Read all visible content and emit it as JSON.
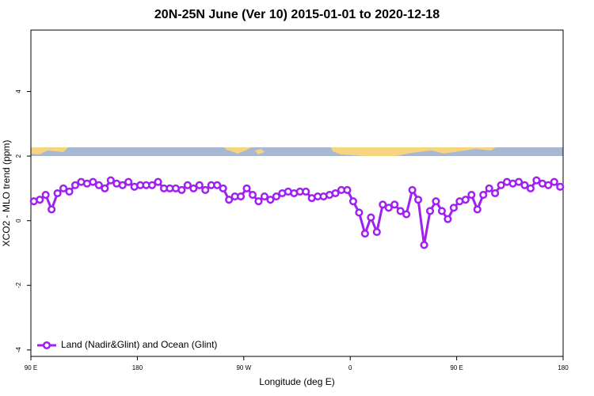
{
  "chart_data": {
    "type": "line",
    "title": "20N-25N June (Ver 10)   2015-01-01 to 2020-12-18",
    "x_label": "Longitude (deg E)",
    "y_label": "XCO2 - MLO trend (ppm)",
    "x": [
      92.5,
      97.5,
      102.5,
      107.5,
      112.5,
      117.5,
      122.5,
      127.5,
      132.5,
      137.5,
      142.5,
      147.5,
      152.5,
      157.5,
      162.5,
      167.5,
      172.5,
      177.5,
      182.5,
      187.5,
      192.5,
      197.5,
      202.5,
      207.5,
      212.5,
      217.5,
      222.5,
      227.5,
      232.5,
      237.5,
      242.5,
      247.5,
      252.5,
      257.5,
      262.5,
      267.5,
      272.5,
      277.5,
      282.5,
      287.5,
      292.5,
      297.5,
      302.5,
      307.5,
      312.5,
      317.5,
      322.5,
      327.5,
      332.5,
      337.5,
      342.5,
      347.5,
      352.5,
      357.5,
      362.5,
      367.5,
      372.5,
      377.5,
      382.5,
      387.5,
      392.5,
      397.5,
      402.5,
      407.5,
      412.5,
      417.5,
      422.5,
      427.5,
      432.5,
      437.5,
      442.5,
      447.5,
      452.5,
      457.5,
      462.5,
      467.5,
      472.5,
      477.5,
      482.5,
      487.5,
      492.5,
      497.5,
      502.5,
      507.5,
      512.5,
      517.5,
      522.5,
      527.5,
      532.5,
      537.5
    ],
    "series": [
      {
        "name": "Land (Nadir&Glint) and Ocean (Glint)",
        "color": "#a020f0",
        "values": [
          0.6,
          0.65,
          0.8,
          0.35,
          0.85,
          1.0,
          0.9,
          1.1,
          1.2,
          1.15,
          1.2,
          1.1,
          1.0,
          1.25,
          1.15,
          1.1,
          1.2,
          1.05,
          1.1,
          1.1,
          1.1,
          1.2,
          1.0,
          1.0,
          1.0,
          0.95,
          1.1,
          1.0,
          1.1,
          0.95,
          1.1,
          1.1,
          1.0,
          0.65,
          0.75,
          0.75,
          1.0,
          0.8,
          0.6,
          0.75,
          0.65,
          0.75,
          0.85,
          0.9,
          0.85,
          0.9,
          0.9,
          0.7,
          0.75,
          0.75,
          0.8,
          0.85,
          0.95,
          0.95,
          0.6,
          0.25,
          -0.4,
          0.1,
          -0.35,
          0.5,
          0.4,
          0.5,
          0.3,
          0.2,
          0.95,
          0.65,
          -0.75,
          0.3,
          0.6,
          0.3,
          0.05,
          0.4,
          0.6,
          0.65,
          0.8,
          0.35,
          0.8,
          1.0,
          0.85,
          1.1,
          1.2,
          1.15,
          1.2,
          1.1,
          1.0,
          1.25,
          1.15,
          1.1,
          1.2,
          1.05
        ]
      }
    ],
    "xlim": [
      90,
      540
    ],
    "xticks": [
      {
        "value": 90,
        "label": "90 E"
      },
      180,
      {
        "value": 270,
        "label": "90 W"
      },
      {
        "value": 360,
        "label": "0"
      },
      {
        "value": 450,
        "label": "90 E"
      },
      {
        "value": 540,
        "label": "180"
      }
    ],
    "ylim": [
      -4.2,
      5.9
    ],
    "yticks": [
      -4,
      -2,
      0,
      2,
      4
    ],
    "grid": false,
    "legend": "bottom-left"
  }
}
